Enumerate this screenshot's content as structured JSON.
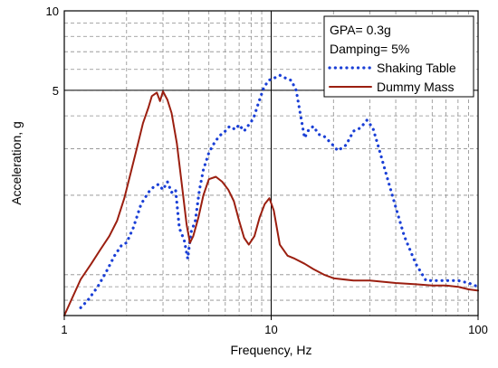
{
  "chart_data": {
    "type": "line",
    "xlabel": "Frequency, Hz",
    "ylabel": "Acceleration, g",
    "xscale": "log",
    "yscale": "log",
    "xlim": [
      1,
      100
    ],
    "ylim": [
      0.7,
      10
    ],
    "xticks": [
      {
        "value": 1,
        "label": "1"
      },
      {
        "value": 10,
        "label": "10"
      },
      {
        "value": 100,
        "label": "100"
      }
    ],
    "yticks": [
      {
        "value": 5,
        "label": "5"
      },
      {
        "value": 10,
        "label": "10"
      }
    ],
    "grid": true,
    "reference_lines": {
      "x": [
        10
      ],
      "y": [
        5
      ]
    },
    "legend_placement": "top-right",
    "annotations": [
      "GPA= 0.3g",
      "Damping= 5%"
    ],
    "series": [
      {
        "name": "Shaking Table",
        "style": "dotted",
        "color": "#1a3fd6",
        "points": [
          [
            1.2,
            0.75
          ],
          [
            1.3,
            0.8
          ],
          [
            1.45,
            0.9
          ],
          [
            1.6,
            1.03
          ],
          [
            1.75,
            1.18
          ],
          [
            1.9,
            1.3
          ],
          [
            2.0,
            1.32
          ],
          [
            2.15,
            1.5
          ],
          [
            2.35,
            1.85
          ],
          [
            2.55,
            2.05
          ],
          [
            2.7,
            2.15
          ],
          [
            2.85,
            2.2
          ],
          [
            3.0,
            2.1
          ],
          [
            3.15,
            2.25
          ],
          [
            3.3,
            2.05
          ],
          [
            3.45,
            2.1
          ],
          [
            3.6,
            1.5
          ],
          [
            3.8,
            1.35
          ],
          [
            3.95,
            1.15
          ],
          [
            4.1,
            1.45
          ],
          [
            4.3,
            1.6
          ],
          [
            4.5,
            2.1
          ],
          [
            4.7,
            2.5
          ],
          [
            5.0,
            2.9
          ],
          [
            5.3,
            3.15
          ],
          [
            5.6,
            3.35
          ],
          [
            6.0,
            3.5
          ],
          [
            6.3,
            3.65
          ],
          [
            6.7,
            3.55
          ],
          [
            7.0,
            3.7
          ],
          [
            7.4,
            3.5
          ],
          [
            7.8,
            3.7
          ],
          [
            8.2,
            3.9
          ],
          [
            8.7,
            4.5
          ],
          [
            9.2,
            5.1
          ],
          [
            9.7,
            5.45
          ],
          [
            10.3,
            5.55
          ],
          [
            11.0,
            5.7
          ],
          [
            11.8,
            5.55
          ],
          [
            12.5,
            5.45
          ],
          [
            13.2,
            5.0
          ],
          [
            13.8,
            4.1
          ],
          [
            14.5,
            3.3
          ],
          [
            15.2,
            3.55
          ],
          [
            16.0,
            3.65
          ],
          [
            17.0,
            3.4
          ],
          [
            18.0,
            3.35
          ],
          [
            19.5,
            3.15
          ],
          [
            21.0,
            2.95
          ],
          [
            23.0,
            3.1
          ],
          [
            25.0,
            3.5
          ],
          [
            27.0,
            3.6
          ],
          [
            29.0,
            3.85
          ],
          [
            31.0,
            3.6
          ],
          [
            33.0,
            3.05
          ],
          [
            36.0,
            2.4
          ],
          [
            40.0,
            1.8
          ],
          [
            44.0,
            1.4
          ],
          [
            50.0,
            1.1
          ],
          [
            56.0,
            0.95
          ],
          [
            62.0,
            0.95
          ],
          [
            70.0,
            0.95
          ],
          [
            80.0,
            0.95
          ],
          [
            90.0,
            0.93
          ],
          [
            100.0,
            0.9
          ]
        ]
      },
      {
        "name": "Dummy Mass",
        "style": "solid",
        "color": "#9b1f10",
        "points": [
          [
            1.0,
            0.7
          ],
          [
            1.08,
            0.8
          ],
          [
            1.2,
            0.96
          ],
          [
            1.35,
            1.1
          ],
          [
            1.5,
            1.25
          ],
          [
            1.65,
            1.4
          ],
          [
            1.8,
            1.6
          ],
          [
            1.95,
            1.95
          ],
          [
            2.1,
            2.45
          ],
          [
            2.25,
            3.05
          ],
          [
            2.4,
            3.75
          ],
          [
            2.55,
            4.3
          ],
          [
            2.65,
            4.75
          ],
          [
            2.8,
            4.9
          ],
          [
            2.9,
            4.55
          ],
          [
            3.0,
            4.95
          ],
          [
            3.15,
            4.6
          ],
          [
            3.3,
            4.1
          ],
          [
            3.5,
            3.15
          ],
          [
            3.7,
            2.2
          ],
          [
            3.9,
            1.55
          ],
          [
            4.05,
            1.32
          ],
          [
            4.2,
            1.4
          ],
          [
            4.45,
            1.65
          ],
          [
            4.7,
            2.0
          ],
          [
            5.0,
            2.3
          ],
          [
            5.4,
            2.35
          ],
          [
            5.8,
            2.25
          ],
          [
            6.2,
            2.1
          ],
          [
            6.6,
            1.9
          ],
          [
            7.0,
            1.6
          ],
          [
            7.4,
            1.38
          ],
          [
            7.8,
            1.3
          ],
          [
            8.3,
            1.4
          ],
          [
            8.8,
            1.65
          ],
          [
            9.3,
            1.85
          ],
          [
            9.8,
            1.95
          ],
          [
            10.3,
            1.75
          ],
          [
            11.0,
            1.3
          ],
          [
            12.0,
            1.18
          ],
          [
            13.0,
            1.15
          ],
          [
            14.5,
            1.1
          ],
          [
            16.0,
            1.05
          ],
          [
            18.0,
            1.0
          ],
          [
            20.0,
            0.97
          ],
          [
            25.0,
            0.95
          ],
          [
            30.0,
            0.95
          ],
          [
            40.0,
            0.93
          ],
          [
            50.0,
            0.92
          ],
          [
            60.0,
            0.91
          ],
          [
            70.0,
            0.91
          ],
          [
            80.0,
            0.9
          ],
          [
            90.0,
            0.88
          ],
          [
            100.0,
            0.87
          ]
        ]
      }
    ]
  }
}
